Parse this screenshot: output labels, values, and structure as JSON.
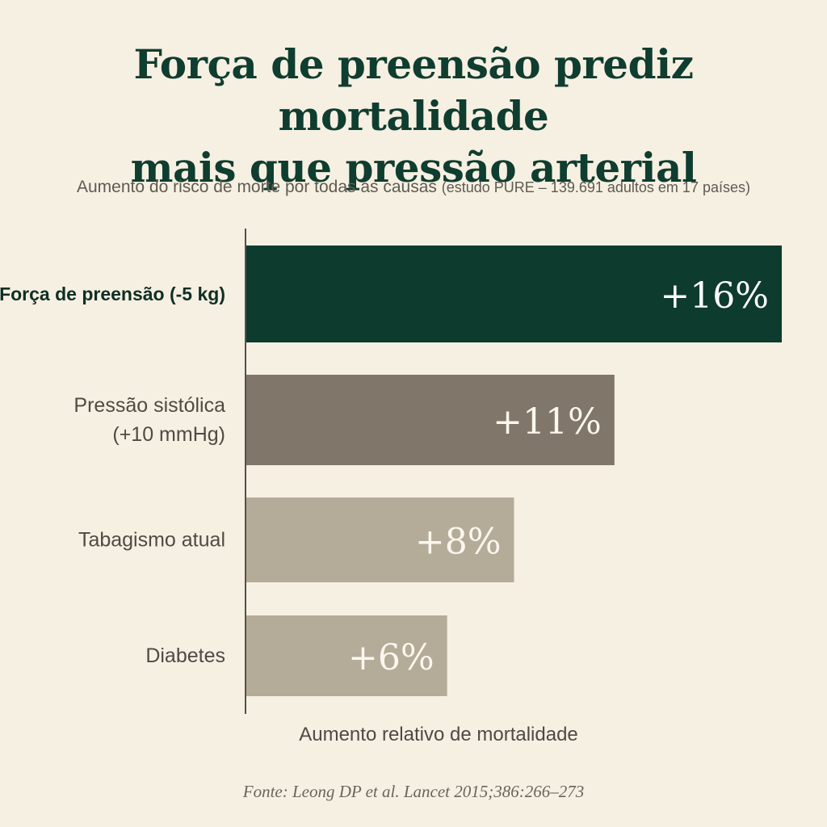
{
  "title_line1": "Força de preensão prediz mortalidade",
  "title_line2": "mais que pressão arterial",
  "subtitle_main": "Aumento do risco de morte por todas as causas",
  "subtitle_note": "(estudo PURE – 139.691 adultos em 17 países)",
  "source": "Fonte: Leong DP et al. Lancet 2015;386:266–273",
  "chart_data": {
    "type": "bar",
    "orientation": "horizontal",
    "categories": [
      [
        "Força de preensão (-5 kg)"
      ],
      [
        "Pressão sistólica",
        "(+10 mmHg)"
      ],
      [
        "Tabagismo atual"
      ],
      [
        "Diabetes"
      ]
    ],
    "values": [
      16,
      11,
      8,
      6
    ],
    "data_labels": [
      "+16%",
      "+11%",
      "+8%",
      "+6%"
    ],
    "xlabel": "Aumento relativo de mortalidade",
    "xlim": [
      0,
      16
    ],
    "grid": false,
    "colors": {
      "highlight": "#0d3b2e",
      "bar2": "#807669",
      "bar_light": "#b5ab99",
      "axis": "#55504a",
      "label_highlight": "#0f2f25",
      "label_normal": "#4f4a43",
      "value_text": "#ffffff",
      "value_text_light": "#fbf7ee"
    },
    "bar_colors": [
      "highlight",
      "bar2",
      "bar_light",
      "bar_light"
    ]
  }
}
